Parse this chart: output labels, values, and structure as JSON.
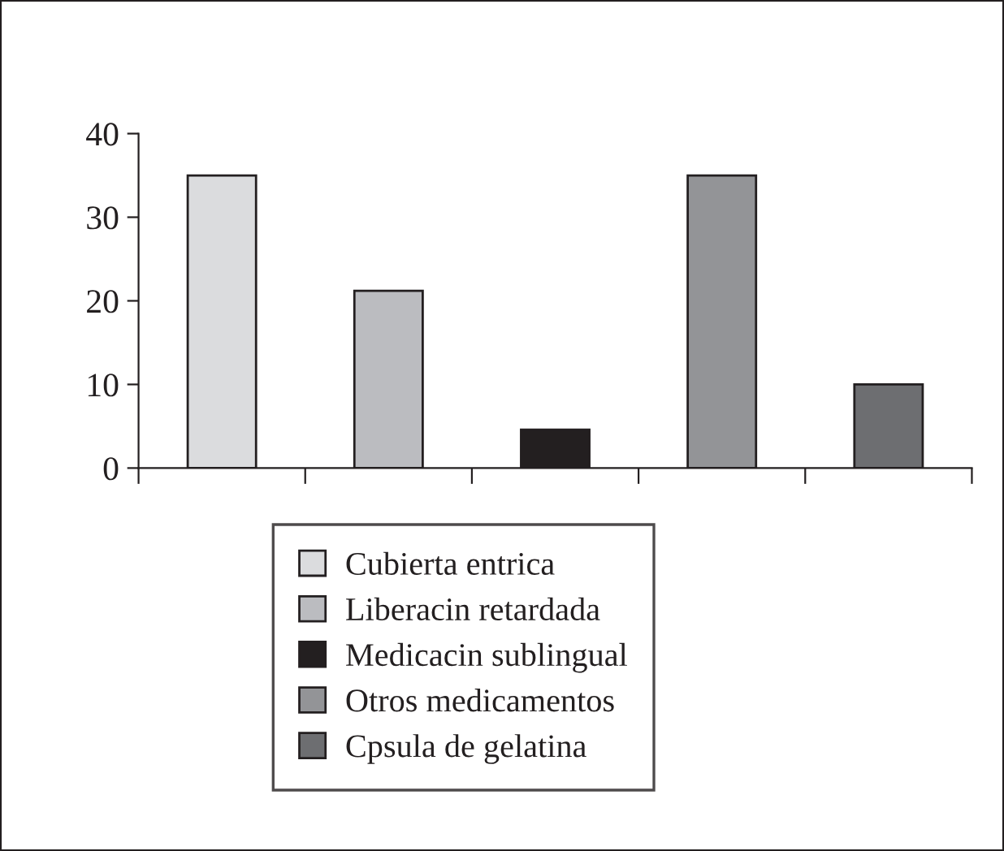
{
  "chart_data": {
    "type": "bar",
    "categories": [
      null,
      null,
      null,
      null,
      null
    ],
    "series": [
      {
        "name": "Cubierta entrica",
        "color": "#dbdcde",
        "values": [
          35,
          null,
          null,
          null,
          null
        ]
      },
      {
        "name": "Liberacin retardada",
        "color": "#bbbcc0",
        "values": [
          null,
          21.2,
          null,
          null,
          null
        ]
      },
      {
        "name": "Medicacin sublingual",
        "color": "#231f20",
        "values": [
          null,
          null,
          4.6,
          null,
          null
        ]
      },
      {
        "name": "Otros medicamentos",
        "color": "#939497",
        "values": [
          null,
          null,
          null,
          35,
          null
        ]
      },
      {
        "name": "Cpsula de gelatina",
        "color": "#6d6e71",
        "values": [
          null,
          null,
          null,
          null,
          10
        ]
      }
    ],
    "ylim": [
      0,
      40
    ],
    "yticks": [
      0,
      10,
      20,
      30,
      40
    ],
    "grid": false,
    "legend": "bottom",
    "tick_labels": "y"
  }
}
